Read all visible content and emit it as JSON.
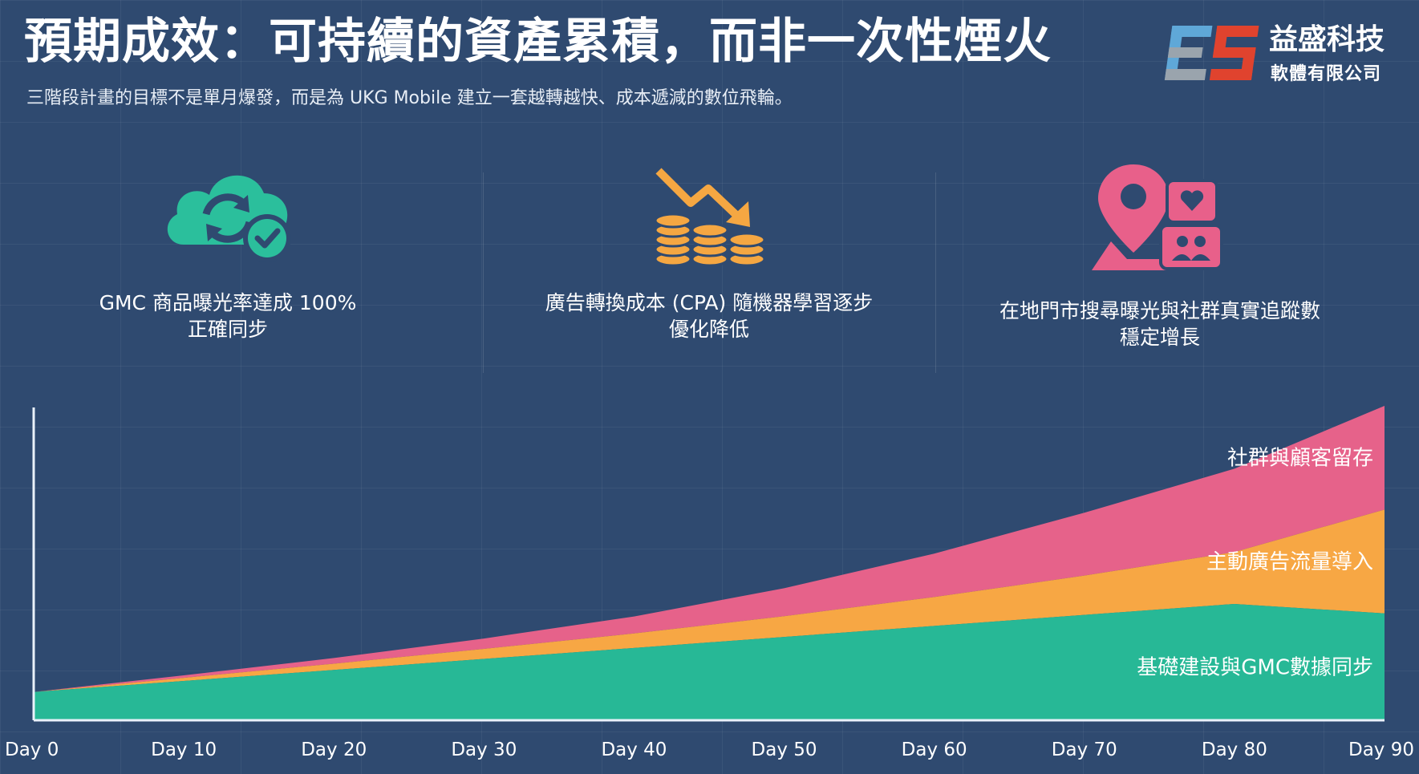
{
  "header": {
    "title": "預期成效：可持續的資產累積，而非一次性煙火",
    "subtitle": "三階段計畫的目標不是單月爆發，而是為 UKG Mobile 建立一套越轉越快、成本遞減的數位飛輪。"
  },
  "logo": {
    "name": "益盛科技",
    "sub": "軟體有限公司",
    "colors": {
      "blue": "#5fa8d8",
      "red": "#e0432e",
      "gray": "#9aa4ad"
    }
  },
  "benefits": [
    {
      "icon": "cloud-sync-check-icon",
      "color": "#2bbf9c",
      "line1": "GMC 商品曝光率達成 100%",
      "line2": "正確同步"
    },
    {
      "icon": "coins-down-arrow-icon",
      "color": "#f5a742",
      "line1": "廣告轉換成本 (CPA) 隨機器學習逐步",
      "line2": "優化降低"
    },
    {
      "icon": "map-pin-social-icon",
      "color": "#e8608a",
      "line1": "在地門市搜尋曝光與社群真實追蹤數",
      "line2": "穩定增長"
    }
  ],
  "chart_data": {
    "type": "area",
    "stacked": true,
    "x_labels": [
      "Day 0",
      "Day 10",
      "Day 20",
      "Day 30",
      "Day 40",
      "Day 50",
      "Day 60",
      "Day 70",
      "Day 80",
      "Day 90"
    ],
    "x": [
      0,
      10,
      20,
      30,
      40,
      50,
      60,
      70,
      80,
      90
    ],
    "ylim": [
      0,
      100
    ],
    "series": [
      {
        "name": "基礎建設與GMC數據同步",
        "color": "#27b896",
        "values": [
          9,
          12.5,
          16,
          19.5,
          23,
          26.5,
          30,
          33.5,
          37,
          34
        ]
      },
      {
        "name": "主動廣告流量導入",
        "color": "#f7a744",
        "values": [
          0,
          1.0,
          2.0,
          3.2,
          4.6,
          6.6,
          9.2,
          12.5,
          16.5,
          33
        ]
      },
      {
        "name": "社群與顧客留存",
        "color": "#e6628a",
        "values": [
          0,
          0.8,
          1.8,
          3.3,
          5.4,
          8.9,
          13.8,
          20.0,
          26.5,
          33
        ]
      }
    ]
  }
}
